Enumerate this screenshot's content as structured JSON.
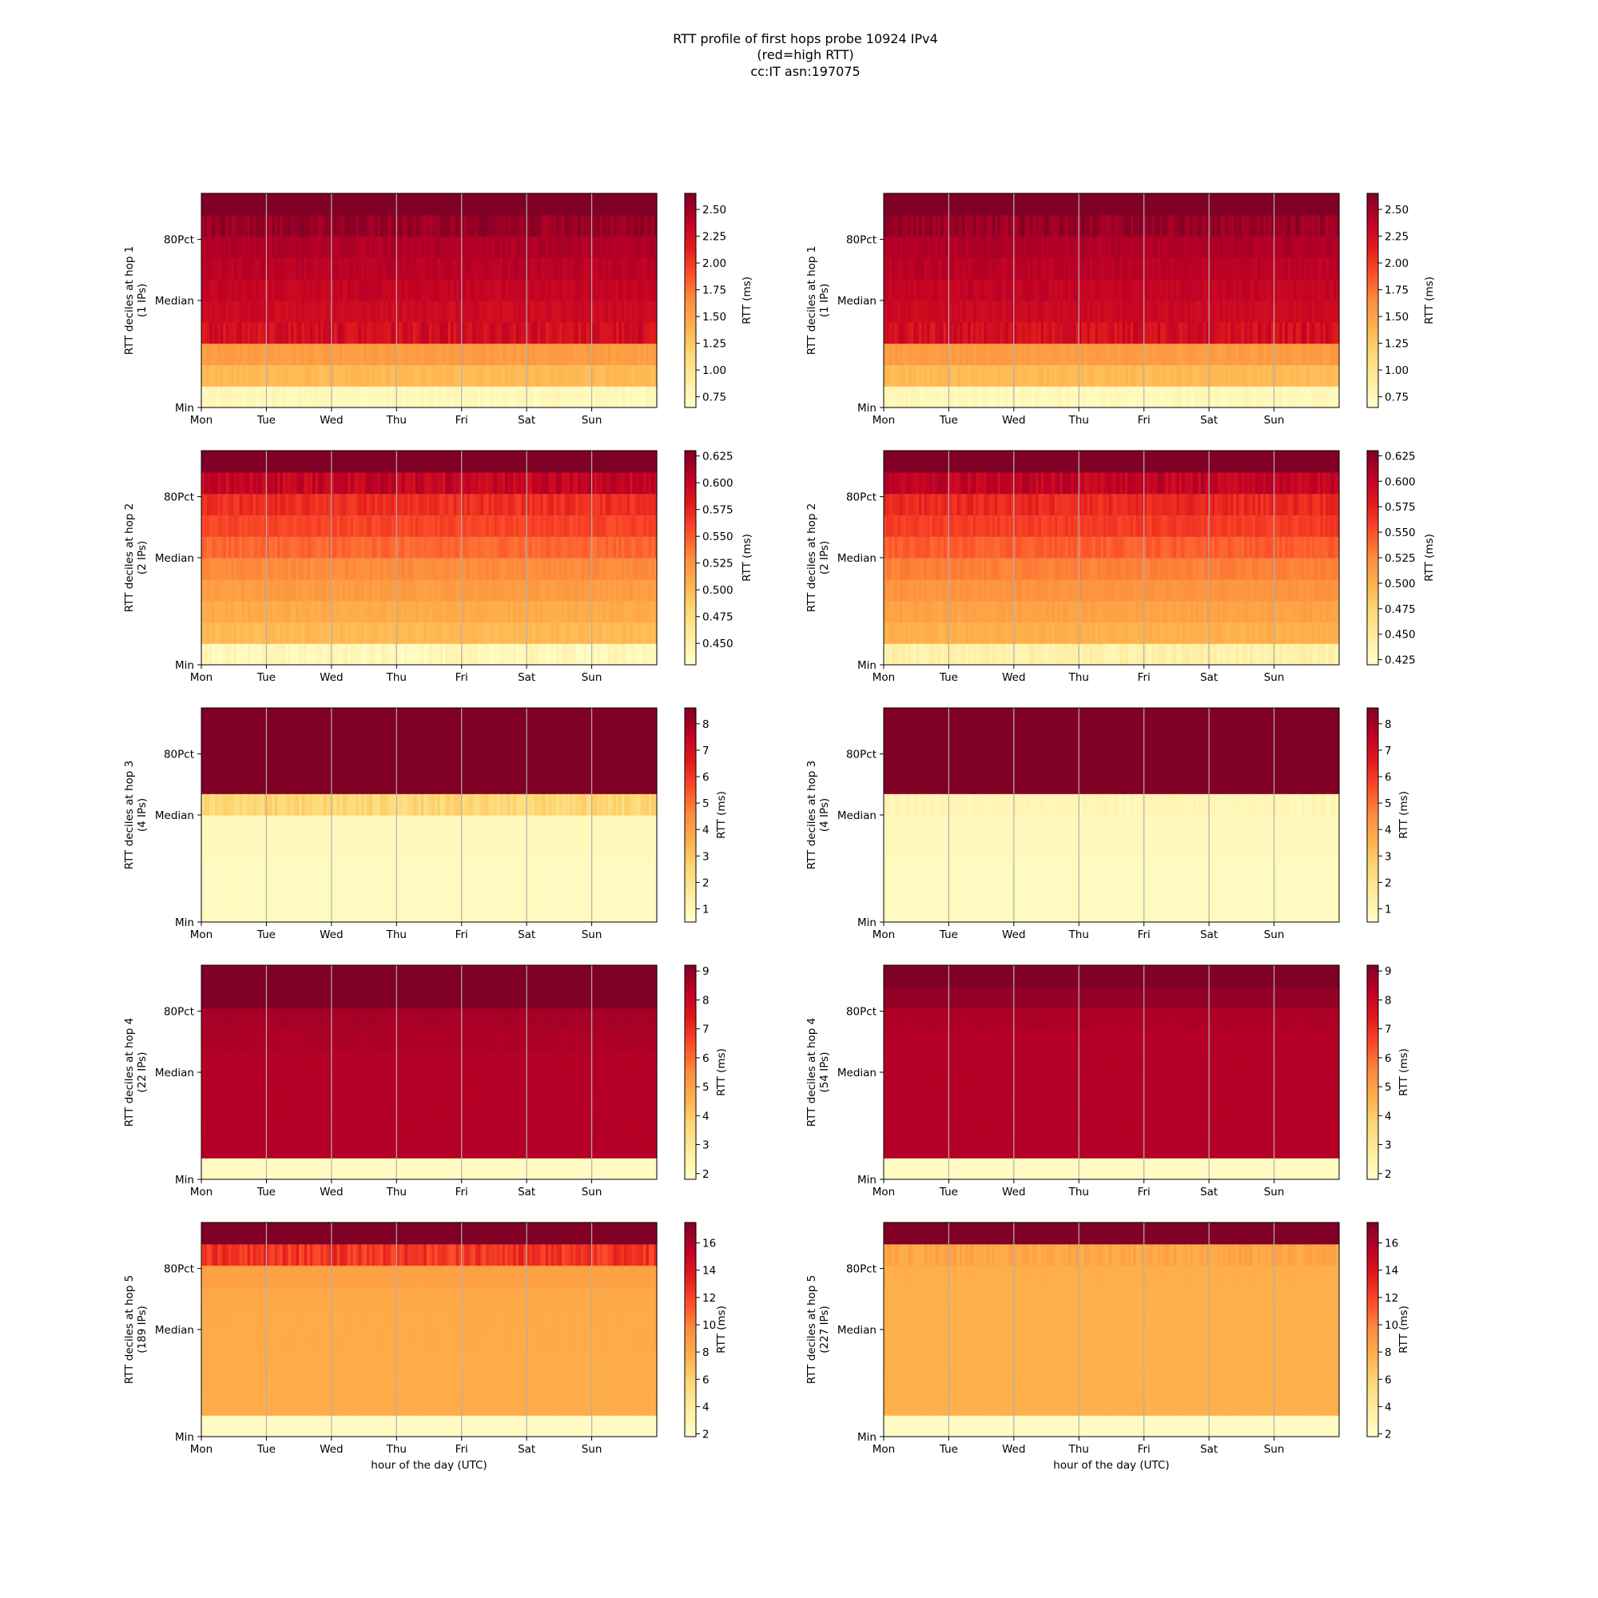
{
  "figure": {
    "title_lines": [
      "RTT profile of first hops probe 10924 IPv4",
      "(red=high RTT)",
      "cc:IT asn:197075"
    ]
  },
  "colormap": [
    "#ffffcc",
    "#ffeda0",
    "#fed976",
    "#feb24c",
    "#fd8d3c",
    "#fc4e2a",
    "#e31a1c",
    "#bd0026",
    "#800026"
  ],
  "chart_data": [
    {
      "type": "heatmap",
      "hop": 1,
      "ylabel": "RTT deciles at hop 1",
      "ylabel2": "(1 IPs)",
      "cbar_label": "RTT (ms)",
      "xticks": [
        "Mon",
        "Tue",
        "Wed",
        "Thu",
        "Fri",
        "Sat",
        "Sun"
      ],
      "yticks": [
        "Min",
        "Median",
        "80Pct"
      ],
      "xlabel": "",
      "vmin": 0.65,
      "vmax": 2.65,
      "cbar_ticks": [
        "0.75",
        "1.00",
        "1.25",
        "1.50",
        "1.75",
        "2.00",
        "2.25",
        "2.50"
      ],
      "decile_rtt": [
        0.75,
        1.35,
        1.55,
        2.25,
        2.3,
        2.35,
        2.4,
        2.45,
        2.55,
        2.65
      ],
      "noise": [
        0.05,
        0.04,
        0.04,
        0.12,
        0.05,
        0.05,
        0.05,
        0.05,
        0.1,
        0
      ]
    },
    {
      "type": "heatmap",
      "hop": 1,
      "ylabel": "RTT deciles at hop 1",
      "ylabel2": "(1 IPs)",
      "cbar_label": "RTT (ms)",
      "xticks": [
        "Mon",
        "Tue",
        "Wed",
        "Thu",
        "Fri",
        "Sat",
        "Sun"
      ],
      "yticks": [
        "Min",
        "Median",
        "80Pct"
      ],
      "xlabel": "",
      "vmin": 0.65,
      "vmax": 2.65,
      "cbar_ticks": [
        "0.75",
        "1.00",
        "1.25",
        "1.50",
        "1.75",
        "2.00",
        "2.25",
        "2.50"
      ],
      "decile_rtt": [
        0.75,
        1.35,
        1.55,
        2.25,
        2.3,
        2.35,
        2.4,
        2.45,
        2.55,
        2.65
      ],
      "noise": [
        0.05,
        0.04,
        0.04,
        0.12,
        0.05,
        0.05,
        0.05,
        0.05,
        0.1,
        0
      ]
    },
    {
      "type": "heatmap",
      "hop": 2,
      "ylabel": "RTT deciles at hop 2",
      "ylabel2": "(2 IPs)",
      "cbar_label": "RTT (ms)",
      "xticks": [
        "Mon",
        "Tue",
        "Wed",
        "Thu",
        "Fri",
        "Sat",
        "Sun"
      ],
      "yticks": [
        "Min",
        "Median",
        "80Pct"
      ],
      "xlabel": "",
      "vmin": 0.43,
      "vmax": 0.63,
      "cbar_ticks": [
        "0.450",
        "0.475",
        "0.500",
        "0.525",
        "0.550",
        "0.575",
        "0.600",
        "0.625"
      ],
      "decile_rtt": [
        0.44,
        0.5,
        0.51,
        0.52,
        0.53,
        0.545,
        0.56,
        0.57,
        0.6,
        0.63
      ],
      "noise": [
        0.008,
        0.004,
        0.004,
        0.004,
        0.004,
        0.006,
        0.006,
        0.008,
        0.012,
        0
      ]
    },
    {
      "type": "heatmap",
      "hop": 2,
      "ylabel": "RTT deciles at hop 2",
      "ylabel2": "(2 IPs)",
      "cbar_label": "RTT (ms)",
      "xticks": [
        "Mon",
        "Tue",
        "Wed",
        "Thu",
        "Fri",
        "Sat",
        "Sun"
      ],
      "yticks": [
        "Min",
        "Median",
        "80Pct"
      ],
      "xlabel": "",
      "vmin": 0.42,
      "vmax": 0.63,
      "cbar_ticks": [
        "0.425",
        "0.450",
        "0.475",
        "0.500",
        "0.525",
        "0.550",
        "0.575",
        "0.600",
        "0.625"
      ],
      "decile_rtt": [
        0.44,
        0.5,
        0.51,
        0.52,
        0.53,
        0.545,
        0.56,
        0.57,
        0.6,
        0.63
      ],
      "noise": [
        0.008,
        0.004,
        0.004,
        0.004,
        0.004,
        0.006,
        0.006,
        0.008,
        0.012,
        0
      ]
    },
    {
      "type": "heatmap",
      "hop": 3,
      "ylabel": "RTT deciles at hop 3",
      "ylabel2": "(4 IPs)",
      "cbar_label": "RTT (ms)",
      "xticks": [
        "Mon",
        "Tue",
        "Wed",
        "Thu",
        "Fri",
        "Sat",
        "Sun"
      ],
      "yticks": [
        "Min",
        "Median",
        "80Pct"
      ],
      "xlabel": "",
      "vmin": 0.5,
      "vmax": 8.6,
      "cbar_ticks": [
        "1",
        "2",
        "3",
        "4",
        "5",
        "6",
        "7",
        "8"
      ],
      "decile_rtt": [
        0.8,
        0.8,
        0.8,
        0.9,
        0.9,
        2.5,
        8.6,
        8.6,
        8.6,
        8.6
      ],
      "noise": [
        0,
        0,
        0,
        0,
        0,
        0.4,
        0,
        0,
        0,
        0
      ]
    },
    {
      "type": "heatmap",
      "hop": 3,
      "ylabel": "RTT deciles at hop 3",
      "ylabel2": "(4 IPs)",
      "cbar_label": "RTT (ms)",
      "xticks": [
        "Mon",
        "Tue",
        "Wed",
        "Thu",
        "Fri",
        "Sat",
        "Sun"
      ],
      "yticks": [
        "Min",
        "Median",
        "80Pct"
      ],
      "xlabel": "",
      "vmin": 0.5,
      "vmax": 8.6,
      "cbar_ticks": [
        "1",
        "2",
        "3",
        "4",
        "5",
        "6",
        "7",
        "8"
      ],
      "decile_rtt": [
        0.8,
        0.8,
        0.8,
        0.9,
        0.9,
        1.0,
        8.6,
        8.6,
        8.6,
        8.6
      ],
      "noise": [
        0,
        0,
        0,
        0,
        0,
        0.2,
        0,
        0,
        0,
        0
      ]
    },
    {
      "type": "heatmap",
      "hop": 4,
      "ylabel": "RTT deciles at hop 4",
      "ylabel2": "(22 IPs)",
      "cbar_label": "RTT (ms)",
      "xticks": [
        "Mon",
        "Tue",
        "Wed",
        "Thu",
        "Fri",
        "Sat",
        "Sun"
      ],
      "yticks": [
        "Min",
        "Median",
        "80Pct"
      ],
      "xlabel": "",
      "vmin": 1.8,
      "vmax": 9.2,
      "cbar_ticks": [
        "2",
        "3",
        "4",
        "5",
        "6",
        "7",
        "8",
        "9"
      ],
      "decile_rtt": [
        2.0,
        8.4,
        8.4,
        8.4,
        8.4,
        8.4,
        8.5,
        8.6,
        9.2,
        9.2
      ],
      "noise": [
        0,
        0.05,
        0.05,
        0.05,
        0.05,
        0.05,
        0.05,
        0.05,
        0,
        0
      ]
    },
    {
      "type": "heatmap",
      "hop": 4,
      "ylabel": "RTT deciles at hop 4",
      "ylabel2": "(54 IPs)",
      "cbar_label": "RTT (ms)",
      "xticks": [
        "Mon",
        "Tue",
        "Wed",
        "Thu",
        "Fri",
        "Sat",
        "Sun"
      ],
      "yticks": [
        "Min",
        "Median",
        "80Pct"
      ],
      "xlabel": "",
      "vmin": 1.8,
      "vmax": 9.2,
      "cbar_ticks": [
        "2",
        "3",
        "4",
        "5",
        "6",
        "7",
        "8",
        "9"
      ],
      "decile_rtt": [
        2.0,
        8.4,
        8.4,
        8.4,
        8.4,
        8.4,
        8.4,
        8.5,
        8.9,
        9.2
      ],
      "noise": [
        0,
        0.05,
        0.05,
        0.05,
        0.05,
        0.05,
        0.05,
        0.05,
        0,
        0
      ]
    },
    {
      "type": "heatmap",
      "hop": 5,
      "ylabel": "RTT deciles at hop 5",
      "ylabel2": "(189 IPs)",
      "cbar_label": "RTT (ms)",
      "xticks": [
        "Mon",
        "Tue",
        "Wed",
        "Thu",
        "Fri",
        "Sat",
        "Sun"
      ],
      "yticks": [
        "Min",
        "Median",
        "80Pct"
      ],
      "xlabel": "hour of the day (UTC)",
      "vmin": 1.8,
      "vmax": 17.5,
      "cbar_ticks": [
        "2",
        "4",
        "6",
        "8",
        "10",
        "12",
        "14",
        "16"
      ],
      "decile_rtt": [
        2.2,
        8.0,
        8.0,
        8.0,
        8.1,
        8.1,
        8.2,
        8.6,
        12.5,
        17.5
      ],
      "noise": [
        0,
        0.05,
        0.05,
        0.05,
        0.05,
        0.05,
        0.05,
        0.1,
        1.0,
        0
      ]
    },
    {
      "type": "heatmap",
      "hop": 5,
      "ylabel": "RTT deciles at hop 5",
      "ylabel2": "(227 IPs)",
      "cbar_label": "RTT (ms)",
      "xticks": [
        "Mon",
        "Tue",
        "Wed",
        "Thu",
        "Fri",
        "Sat",
        "Sun"
      ],
      "yticks": [
        "Min",
        "Median",
        "80Pct"
      ],
      "xlabel": "hour of the day (UTC)",
      "vmin": 1.8,
      "vmax": 17.5,
      "cbar_ticks": [
        "2",
        "4",
        "6",
        "8",
        "10",
        "12",
        "14",
        "16"
      ],
      "decile_rtt": [
        2.2,
        7.8,
        7.8,
        7.8,
        7.8,
        7.8,
        7.8,
        7.9,
        8.3,
        17.5
      ],
      "noise": [
        0,
        0.05,
        0.05,
        0.05,
        0.05,
        0.05,
        0.05,
        0.05,
        0.5,
        0
      ]
    }
  ]
}
